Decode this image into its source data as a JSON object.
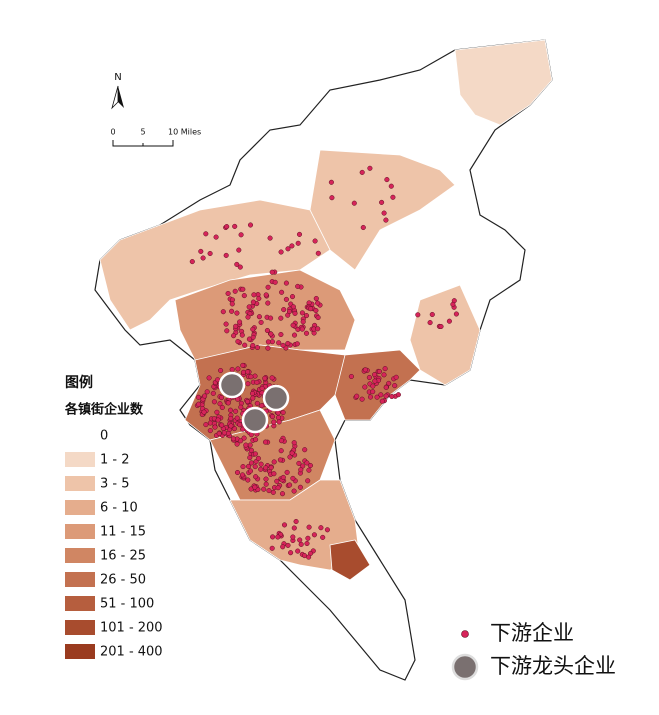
{
  "north": "N",
  "scale_bar": [
    "0",
    "5",
    "10 Miles"
  ],
  "legend": {
    "title": "图例",
    "subtitle": "各镇街企业数",
    "classes": [
      {
        "label": "0",
        "color": "#ffffff"
      },
      {
        "label": "1 - 2",
        "color": "#f4d9c6"
      },
      {
        "label": "3 - 5",
        "color": "#eec4a9"
      },
      {
        "label": "6 - 10",
        "color": "#e5ad8d"
      },
      {
        "label": "11 - 15",
        "color": "#dc9a78"
      },
      {
        "label": "16 - 25",
        "color": "#d08663"
      },
      {
        "label": "26 - 50",
        "color": "#c37150"
      },
      {
        "label": "51 - 100",
        "color": "#b65e3e"
      },
      {
        "label": "101 - 200",
        "color": "#a84c2e"
      },
      {
        "label": "201 - 400",
        "color": "#9a3b1f"
      }
    ],
    "points": [
      {
        "label": "下游企业",
        "color": "#d6245a"
      },
      {
        "label": "下游龙头企业",
        "color": "#7a7070"
      }
    ]
  }
}
